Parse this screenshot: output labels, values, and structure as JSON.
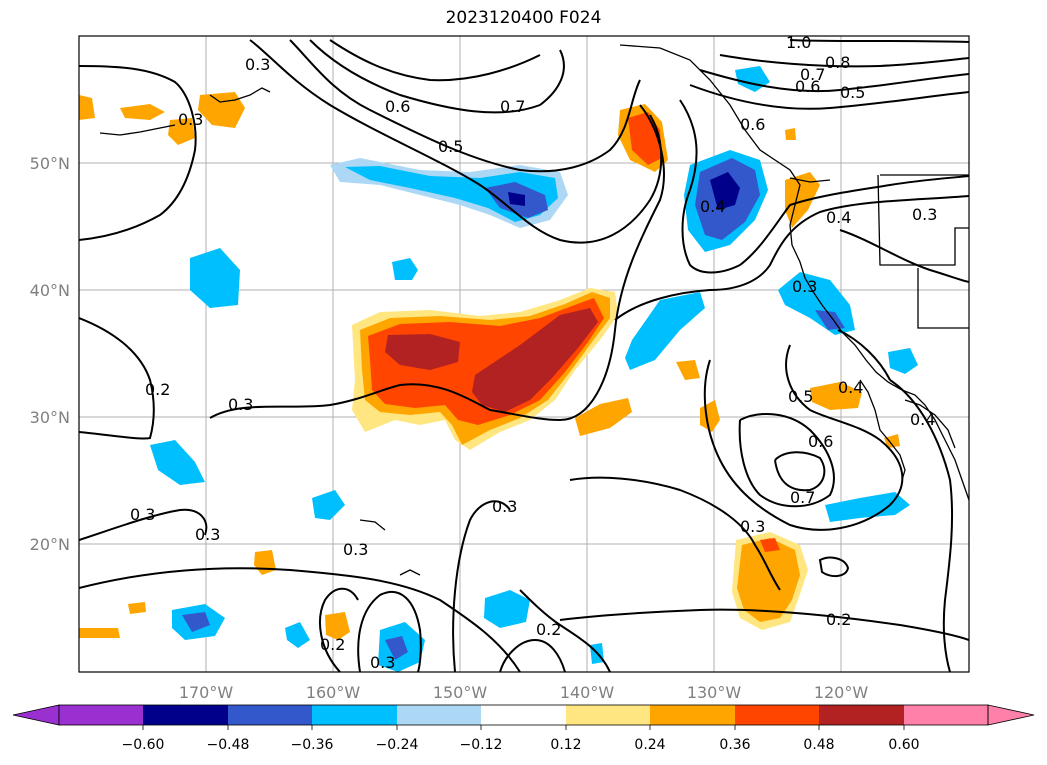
{
  "title": "2023120400 F024",
  "lon_ticks": [
    "170°W",
    "160°W",
    "150°W",
    "140°W",
    "130°W",
    "120°W"
  ],
  "lat_ticks": [
    "50°N",
    "40°N",
    "30°N",
    "20°N"
  ],
  "colorbar": {
    "labels": [
      "−0.60",
      "−0.48",
      "−0.36",
      "−0.24",
      "−0.12",
      "0.12",
      "0.24",
      "0.36",
      "0.48",
      "0.60"
    ],
    "colors": [
      "#9b30d0",
      "#00008b",
      "#3358cc",
      "#00bfff",
      "#add8f5",
      "#ffffff",
      "#ffe680",
      "#ffa500",
      "#ff4500",
      "#b22222",
      "#ff80a8"
    ]
  },
  "contour_labels": [
    "1.0",
    "0.8",
    "0.7",
    "0.6",
    "0.5",
    "0.3",
    "0.6",
    "0.5",
    "0.7",
    "0.3",
    "0.2",
    "0.3",
    "0.3",
    "0.3",
    "0.3",
    "0.3",
    "0.2",
    "0.3",
    "0.2",
    "0.4",
    "0.3",
    "0.5",
    "0.4",
    "0.6",
    "0.7",
    "0.3",
    "0.2",
    "0.4",
    "0.3",
    "0.4",
    "0.6"
  ],
  "colors": {
    "land": "#ffffff",
    "grid": "#b0b0b0",
    "contour": "#000000"
  }
}
